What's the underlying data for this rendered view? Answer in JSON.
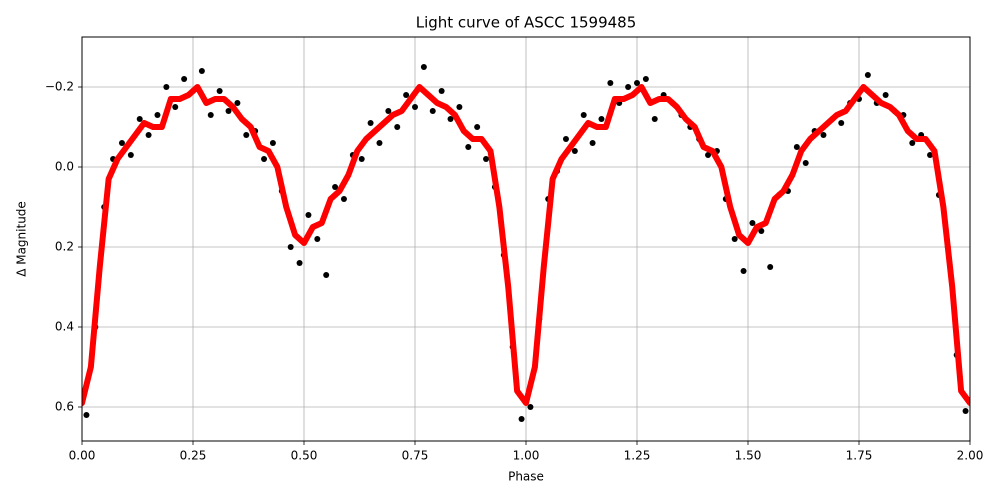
{
  "chart_data": {
    "type": "scatter",
    "title": "Light curve of ASCC 1599485",
    "xlabel": "Phase",
    "ylabel": "Δ Magnitude",
    "xlim": [
      0,
      2
    ],
    "ylim": [
      -0.325,
      0.685
    ],
    "y_inverted": true,
    "grid": true,
    "xticks": [
      {
        "value": 0,
        "label": "0.00"
      },
      {
        "value": 0.25,
        "label": "0.25"
      },
      {
        "value": 0.5,
        "label": "0.50"
      },
      {
        "value": 0.75,
        "label": "0.75"
      },
      {
        "value": 1,
        "label": "1.00"
      },
      {
        "value": 1.25,
        "label": "1.25"
      },
      {
        "value": 1.5,
        "label": "1.50"
      },
      {
        "value": 1.75,
        "label": "1.75"
      },
      {
        "value": 2,
        "label": "2.00"
      }
    ],
    "yticks": [
      {
        "value": -0.2,
        "label": "−0.2"
      },
      {
        "value": 0,
        "label": "0.0"
      },
      0.2,
      0.4,
      0.6
    ],
    "points": {
      "color": "#000000",
      "x": [
        0.01,
        0.03,
        0.05,
        0.07,
        0.09,
        0.11,
        0.13,
        0.15,
        0.17,
        0.19,
        0.21,
        0.23,
        0.25,
        0.27,
        0.29,
        0.31,
        0.33,
        0.35,
        0.37,
        0.39,
        0.41,
        0.43,
        0.45,
        0.47,
        0.49,
        0.51,
        0.53,
        0.55,
        0.57,
        0.59,
        0.61,
        0.63,
        0.65,
        0.67,
        0.69,
        0.71,
        0.73,
        0.75,
        0.77,
        0.79,
        0.81,
        0.83,
        0.85,
        0.87,
        0.89,
        0.91,
        0.93,
        0.95,
        0.97,
        0.99,
        1.01,
        1.03,
        1.05,
        1.07,
        1.09,
        1.11,
        1.13,
        1.15,
        1.17,
        1.19,
        1.21,
        1.23,
        1.25,
        1.27,
        1.29,
        1.31,
        1.33,
        1.35,
        1.37,
        1.39,
        1.41,
        1.43,
        1.45,
        1.47,
        1.49,
        1.51,
        1.53,
        1.55,
        1.57,
        1.59,
        1.61,
        1.63,
        1.65,
        1.67,
        1.69,
        1.71,
        1.73,
        1.75,
        1.77,
        1.79,
        1.81,
        1.83,
        1.85,
        1.87,
        1.89,
        1.91,
        1.93,
        1.95,
        1.97,
        1.99
      ],
      "y": [
        0.62,
        0.4,
        0.1,
        -0.02,
        -0.06,
        -0.03,
        -0.12,
        -0.08,
        -0.13,
        -0.2,
        -0.15,
        -0.22,
        -0.19,
        -0.24,
        -0.13,
        -0.19,
        -0.14,
        -0.16,
        -0.08,
        -0.09,
        -0.02,
        -0.06,
        0.06,
        0.2,
        0.24,
        0.12,
        0.18,
        0.27,
        0.05,
        0.08,
        -0.03,
        -0.02,
        -0.11,
        -0.06,
        -0.14,
        -0.1,
        -0.18,
        -0.15,
        -0.25,
        -0.14,
        -0.19,
        -0.12,
        -0.15,
        -0.05,
        -0.1,
        -0.02,
        0.05,
        0.22,
        0.45,
        0.63,
        0.6,
        0.38,
        0.08,
        0.01,
        -0.07,
        -0.04,
        -0.13,
        -0.06,
        -0.12,
        -0.21,
        -0.16,
        -0.2,
        -0.21,
        -0.22,
        -0.12,
        -0.18,
        -0.16,
        -0.13,
        -0.1,
        -0.07,
        -0.03,
        -0.04,
        0.08,
        0.18,
        0.26,
        0.14,
        0.16,
        0.25,
        0.07,
        0.06,
        -0.05,
        -0.01,
        -0.09,
        -0.08,
        -0.12,
        -0.11,
        -0.16,
        -0.17,
        -0.23,
        -0.16,
        -0.18,
        -0.14,
        -0.13,
        -0.06,
        -0.08,
        -0.03,
        0.07,
        0.2,
        0.47,
        0.61
      ]
    },
    "curve": {
      "color": "#ff0000",
      "x": [
        0,
        0.02,
        0.04,
        0.06,
        0.08,
        0.1,
        0.12,
        0.14,
        0.16,
        0.18,
        0.2,
        0.22,
        0.24,
        0.26,
        0.28,
        0.3,
        0.32,
        0.34,
        0.36,
        0.38,
        0.4,
        0.42,
        0.44,
        0.46,
        0.48,
        0.5,
        0.52,
        0.54,
        0.56,
        0.58,
        0.6,
        0.62,
        0.64,
        0.66,
        0.68,
        0.7,
        0.72,
        0.74,
        0.76,
        0.78,
        0.8,
        0.82,
        0.84,
        0.86,
        0.88,
        0.9,
        0.92,
        0.94,
        0.96,
        0.98,
        1,
        1.02,
        1.04,
        1.06,
        1.08,
        1.1,
        1.12,
        1.14,
        1.16,
        1.18,
        1.2,
        1.22,
        1.24,
        1.26,
        1.28,
        1.3,
        1.32,
        1.34,
        1.36,
        1.38,
        1.4,
        1.42,
        1.44,
        1.46,
        1.48,
        1.5,
        1.52,
        1.54,
        1.56,
        1.58,
        1.6,
        1.62,
        1.64,
        1.66,
        1.68,
        1.7,
        1.72,
        1.74,
        1.76,
        1.78,
        1.8,
        1.82,
        1.84,
        1.86,
        1.88,
        1.9,
        1.92,
        1.94,
        1.96,
        1.98,
        2
      ],
      "y": [
        0.59,
        0.5,
        0.25,
        0.03,
        -0.02,
        -0.05,
        -0.08,
        -0.11,
        -0.1,
        -0.1,
        -0.17,
        -0.17,
        -0.18,
        -0.2,
        -0.16,
        -0.17,
        -0.17,
        -0.15,
        -0.12,
        -0.1,
        -0.05,
        -0.04,
        0,
        0.1,
        0.17,
        0.19,
        0.15,
        0.14,
        0.08,
        0.06,
        0.02,
        -0.04,
        -0.07,
        -0.09,
        -0.11,
        -0.13,
        -0.14,
        -0.17,
        -0.2,
        -0.18,
        -0.16,
        -0.15,
        -0.13,
        -0.09,
        -0.07,
        -0.07,
        -0.04,
        0.1,
        0.3,
        0.56,
        0.59,
        0.5,
        0.25,
        0.03,
        -0.02,
        -0.05,
        -0.08,
        -0.11,
        -0.1,
        -0.1,
        -0.17,
        -0.17,
        -0.18,
        -0.2,
        -0.16,
        -0.17,
        -0.17,
        -0.15,
        -0.12,
        -0.1,
        -0.05,
        -0.04,
        0,
        0.1,
        0.17,
        0.19,
        0.15,
        0.14,
        0.08,
        0.06,
        0.02,
        -0.04,
        -0.07,
        -0.09,
        -0.11,
        -0.13,
        -0.14,
        -0.17,
        -0.2,
        -0.18,
        -0.16,
        -0.15,
        -0.13,
        -0.09,
        -0.07,
        -0.07,
        -0.04,
        0.1,
        0.3,
        0.56,
        0.59
      ]
    }
  }
}
